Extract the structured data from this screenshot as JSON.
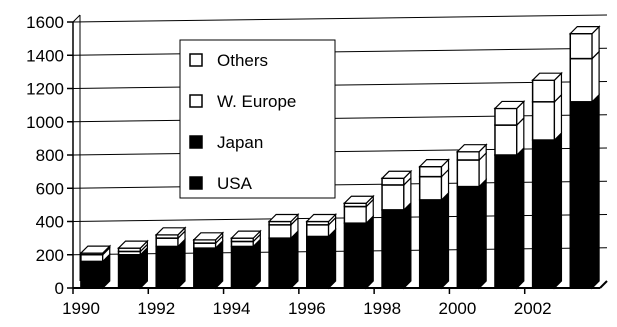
{
  "chart_data": {
    "type": "bar",
    "stacked": true,
    "three_d": true,
    "title": "",
    "xlabel": "",
    "ylabel": "",
    "ylim": [
      0,
      1600
    ],
    "y_ticks": [
      0,
      200,
      400,
      600,
      800,
      1000,
      1200,
      1400,
      1600
    ],
    "x_tick_labels": [
      "1990",
      "1992",
      "1994",
      "1996",
      "1998",
      "2000",
      "2002"
    ],
    "categories": [
      "1990",
      "1991",
      "1992",
      "1993",
      "1994",
      "1995",
      "1996",
      "1997",
      "1998",
      "1999",
      "2000",
      "2001",
      "2002",
      "2003"
    ],
    "grid": true,
    "legend_position": "upper-left-inside",
    "series": [
      {
        "name": "USA",
        "color": "#000000",
        "values": [
          160,
          200,
          250,
          240,
          250,
          300,
          310,
          390,
          470,
          530,
          610,
          800,
          890,
          1120
        ]
      },
      {
        "name": "Japan",
        "color": "#000000",
        "values": [
          0,
          0,
          0,
          0,
          0,
          0,
          0,
          0,
          0,
          0,
          0,
          0,
          0,
          0
        ]
      },
      {
        "name": "W. Europe",
        "color": "#ffffff",
        "values": [
          40,
          20,
          50,
          30,
          30,
          80,
          70,
          100,
          150,
          140,
          160,
          180,
          230,
          260
        ]
      },
      {
        "name": "Others",
        "color": "#ffffff",
        "values": [
          10,
          20,
          20,
          20,
          20,
          20,
          20,
          20,
          40,
          60,
          50,
          100,
          130,
          150
        ]
      }
    ]
  }
}
